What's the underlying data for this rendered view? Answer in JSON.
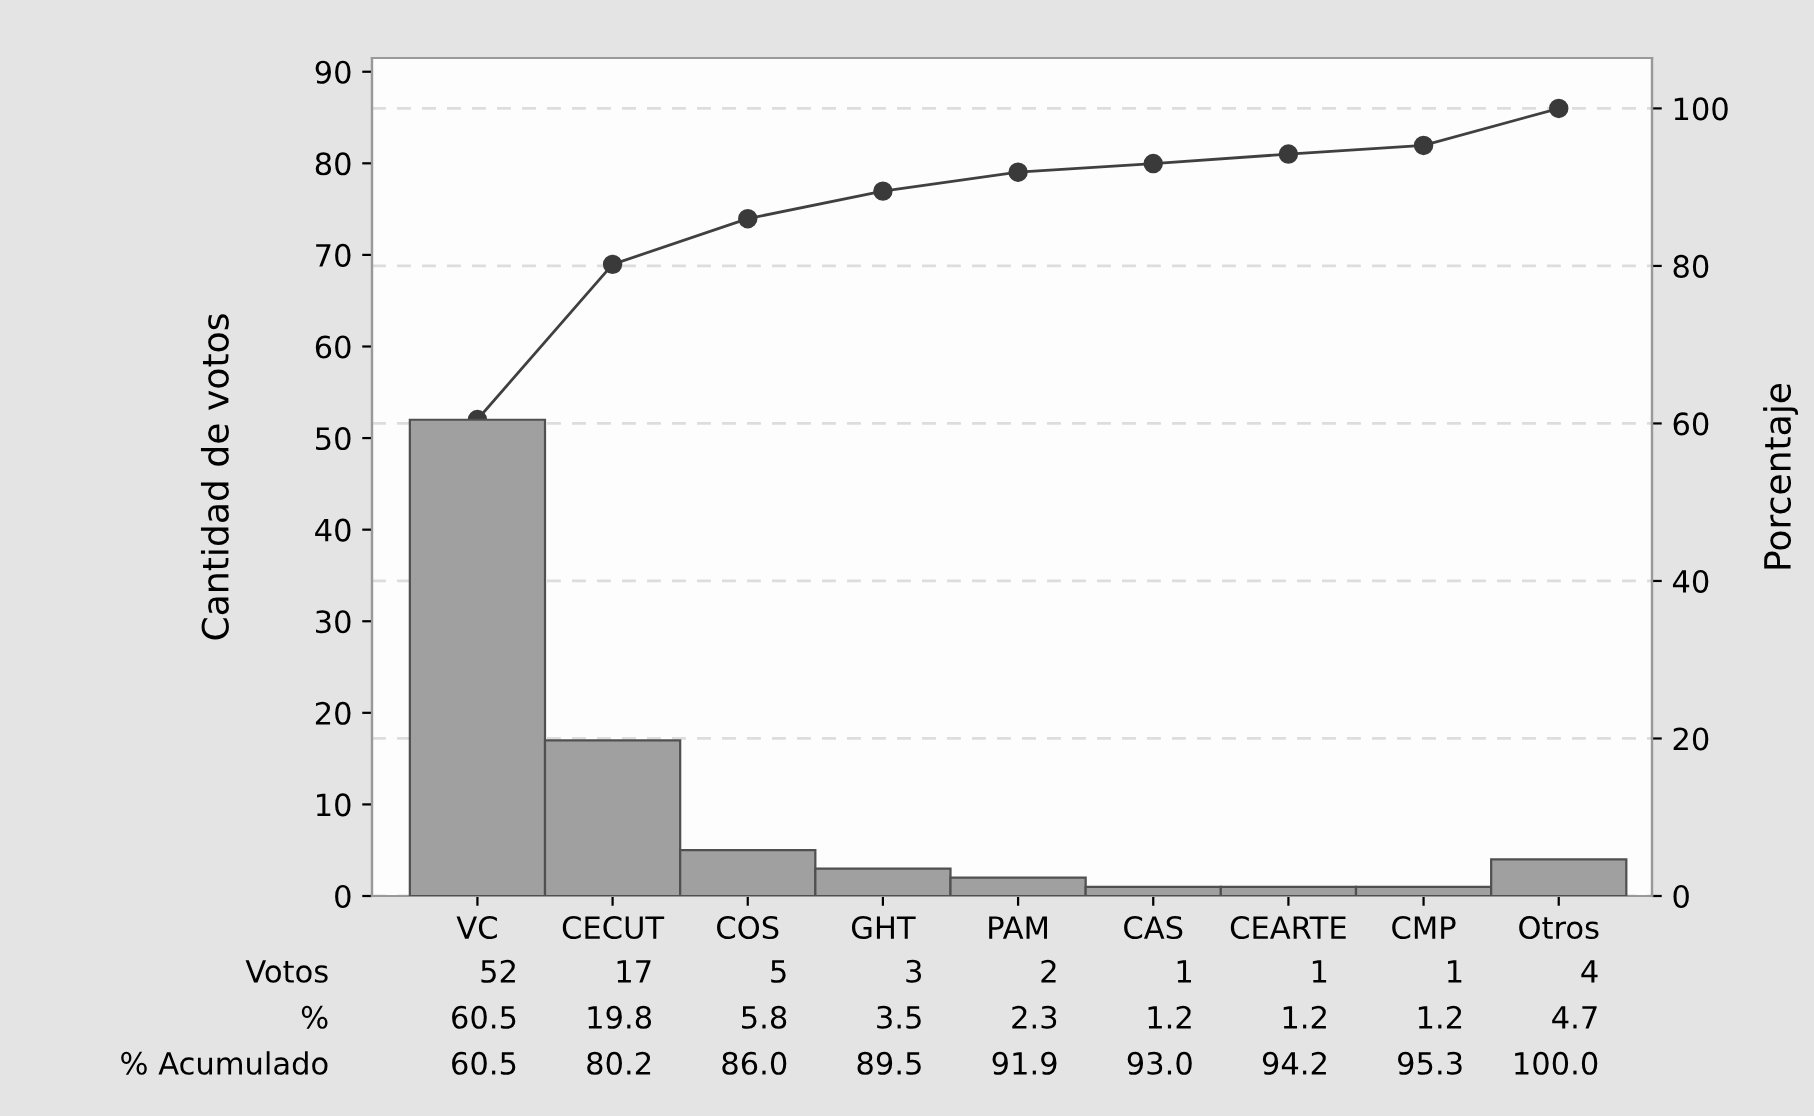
{
  "chart_data": {
    "type": "bar",
    "categories": [
      "VC",
      "CECUT",
      "COS",
      "GHT",
      "PAM",
      "CAS",
      "CEARTE",
      "CMP",
      "Otros"
    ],
    "ylabel": "Cantidad de votos",
    "y2label": "Porcentaje",
    "series": [
      {
        "color": "#a0a0a0",
        "values": [
          52,
          17,
          5,
          3,
          2,
          1,
          1,
          1,
          4
        ]
      },
      {
        "type": "line",
        "axis": "y2",
        "color": "#404040",
        "values": [
          60.5,
          80.2,
          86.0,
          89.5,
          91.9,
          93.0,
          94.2,
          95.3,
          100.0
        ],
        "value_labels": [
          "60.5",
          "80.2",
          "86.0",
          "89.5",
          "91.9",
          "93.0",
          "94.2",
          "95.3",
          "100.0"
        ]
      }
    ],
    "data_labels": true,
    "annotations": [
      "Votos",
      "%",
      "% Acumulado",
      "60.5",
      "19.8",
      "5.8",
      "3.5",
      "2.3",
      "1.2",
      "1.2",
      "1.2",
      "4.7"
    ],
    "ylim": [
      0,
      91.5
    ],
    "yticks": [
      0,
      10,
      20,
      30,
      40,
      50,
      60,
      70,
      80,
      90
    ],
    "y2lim": [
      0,
      106.4
    ],
    "y2ticks": [
      0,
      20,
      40,
      60,
      80,
      100
    ],
    "grid": "y2",
    "marker": "circle",
    "line_style": "solid",
    "legend": false
  }
}
